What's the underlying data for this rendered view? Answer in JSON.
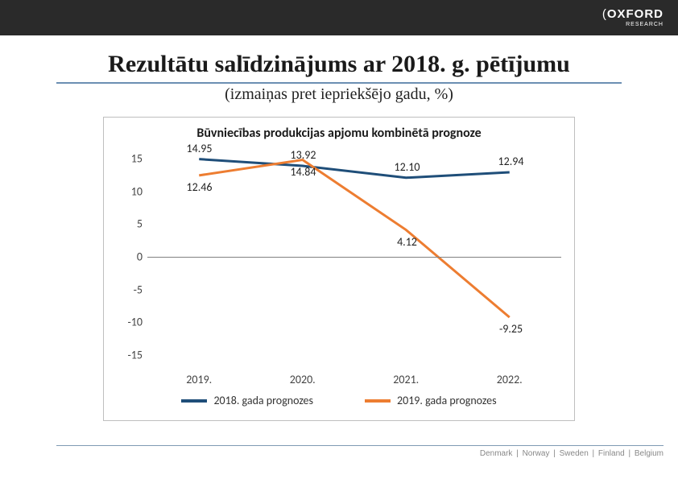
{
  "header": {
    "logo_main": "OXFORD",
    "logo_sub": "RESEARCH"
  },
  "title": "Rezultātu salīdzinājums ar 2018. g. pētījumu",
  "subtitle": "(izmaiņas pret iepriekšējo gadu, %)",
  "chart": {
    "type": "line",
    "title": "Būvniecības produkcijas apjomu kombinētā prognoze",
    "title_fontsize": 16,
    "label_fontsize": 14,
    "background_color": "#ffffff",
    "border_color": "#bfbfbf",
    "axis_color": "#808080",
    "text_color": "#333333",
    "ylim": [
      -17,
      17
    ],
    "yticks": [
      15,
      10,
      5,
      0,
      -5,
      -10,
      -15
    ],
    "categories": [
      "2019.",
      "2020.",
      "2021.",
      "2022."
    ],
    "series": [
      {
        "name": "2018. gada prognozes",
        "color": "#1f4e79",
        "line_width": 3,
        "values": [
          14.95,
          13.92,
          12.1,
          12.94
        ],
        "labels": [
          "14.95",
          "13.92",
          "12.10",
          "12.94"
        ],
        "label_pos": [
          "above",
          "above",
          "above",
          "above"
        ]
      },
      {
        "name": "2019. gada prognozes",
        "color": "#ed7d31",
        "line_width": 3,
        "values": [
          12.46,
          14.84,
          4.12,
          -9.25
        ],
        "labels": [
          "12.46",
          "14.84",
          "4.12",
          "-9.25"
        ],
        "label_pos": [
          "below",
          "below",
          "below",
          "below"
        ]
      }
    ]
  },
  "footer": {
    "countries": "Denmark | Norway | Sweden | Finland | Belgium"
  }
}
